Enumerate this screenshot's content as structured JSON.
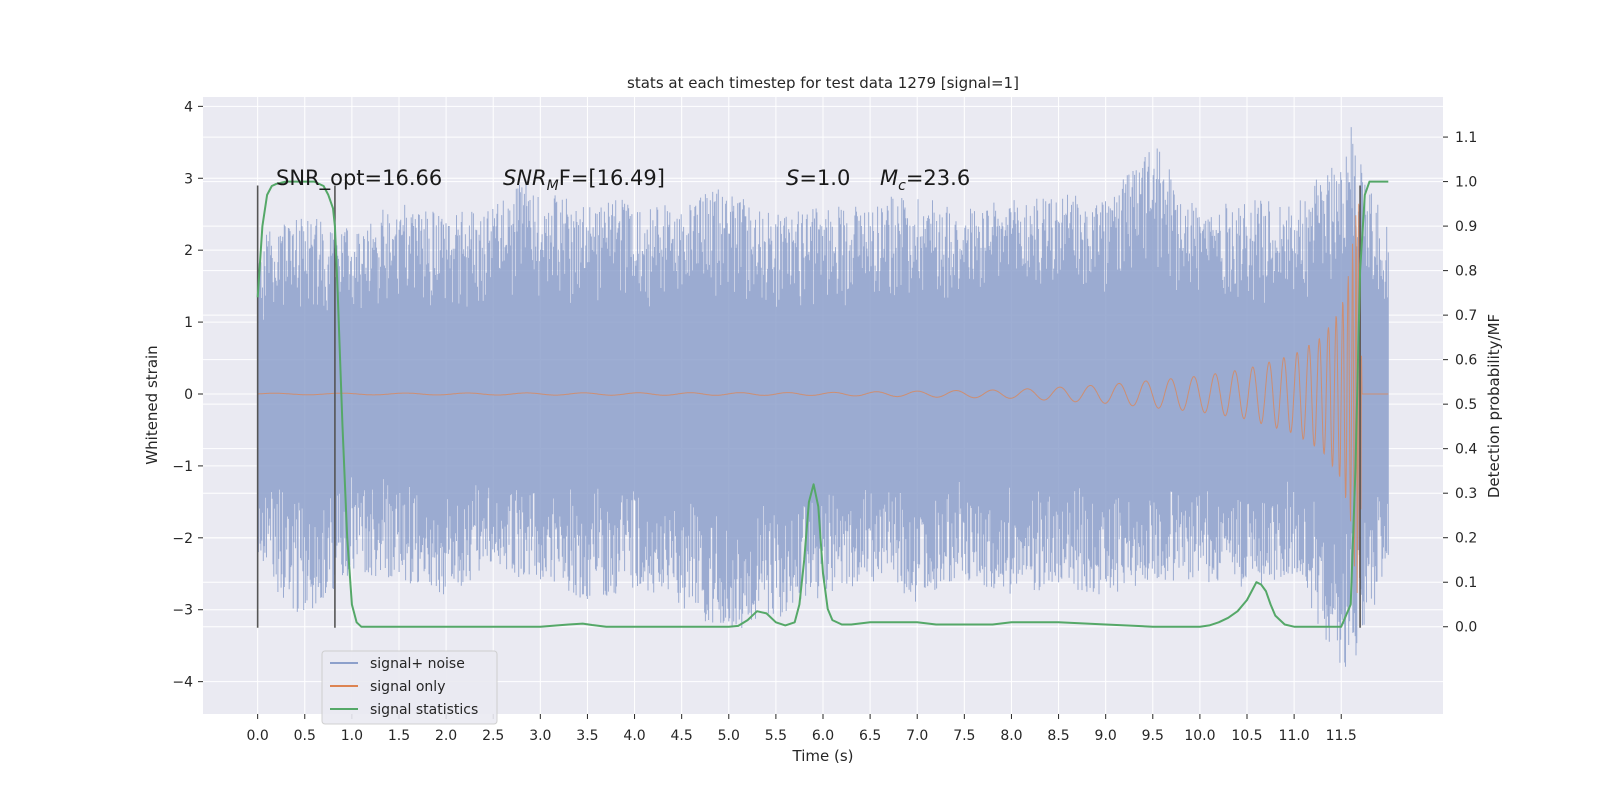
{
  "chart_data": {
    "type": "line",
    "title": "stats at each timestep for test data 1279 [signal=1]",
    "xlabel": "Time (s)",
    "ylabel": "Whitened strain",
    "y2label": "Detection probability/MF",
    "xlim": [
      -0.58,
      12.58
    ],
    "ylim": [
      -4.45,
      4.13
    ],
    "y2lim": [
      -0.196,
      1.19
    ],
    "x_ticks": [
      "0.0",
      "0.5",
      "1.0",
      "1.5",
      "2.0",
      "2.5",
      "3.0",
      "3.5",
      "4.0",
      "4.5",
      "5.0",
      "5.5",
      "6.0",
      "6.5",
      "7.0",
      "7.5",
      "8.0",
      "8.5",
      "9.0",
      "9.5",
      "10.0",
      "10.5",
      "11.0",
      "11.5"
    ],
    "y_ticks": [
      "4",
      "3",
      "2",
      "1",
      "0",
      "−1",
      "−2",
      "−3",
      "−4"
    ],
    "y2_ticks": [
      "1.1",
      "1.0",
      "0.9",
      "0.8",
      "0.7",
      "0.6",
      "0.5",
      "0.4",
      "0.3",
      "0.2",
      "0.1",
      "0.0"
    ],
    "grid": true,
    "legend_position": "lower-left",
    "colors": {
      "background": "#eaeaf2",
      "grid": "#ffffff",
      "signal_noise": "#8da0cb",
      "signal_only": "#dd8452",
      "statistics": "#55a868",
      "vline": "#555555"
    },
    "annotations": {
      "snr_opt": "SNR_opt=16.66",
      "snr_mf_prefix": "SNR",
      "snr_mf_sub": "M",
      "snr_mf_suffix": "F=[16.49]",
      "s_italic": "S",
      "s_value": "=1.0",
      "mc_italic": "M",
      "mc_sub": "c",
      "mc_value": "=23.6"
    },
    "series": [
      {
        "name": "signal+ noise",
        "kind": "whitened noise + signal",
        "x_range": [
          0,
          12.0
        ],
        "envelope_pos": [
          [
            0.0,
            2.2
          ],
          [
            0.5,
            2.5
          ],
          [
            1.0,
            2.3
          ],
          [
            1.5,
            2.7
          ],
          [
            2.0,
            2.5
          ],
          [
            2.5,
            2.6
          ],
          [
            2.8,
            2.95
          ],
          [
            3.0,
            2.8
          ],
          [
            3.5,
            2.7
          ],
          [
            4.0,
            2.7
          ],
          [
            4.5,
            2.6
          ],
          [
            4.9,
            2.9
          ],
          [
            5.5,
            2.5
          ],
          [
            6.0,
            2.6
          ],
          [
            6.5,
            2.7
          ],
          [
            7.0,
            2.8
          ],
          [
            7.5,
            2.6
          ],
          [
            8.0,
            2.7
          ],
          [
            8.5,
            2.8
          ],
          [
            9.0,
            2.7
          ],
          [
            9.5,
            3.5
          ],
          [
            10.0,
            2.6
          ],
          [
            10.5,
            2.7
          ],
          [
            11.0,
            2.7
          ],
          [
            11.5,
            3.3
          ],
          [
            11.6,
            3.75
          ],
          [
            12.0,
            2.3
          ]
        ],
        "envelope_neg": [
          [
            0.0,
            -2.3
          ],
          [
            0.3,
            -3.0
          ],
          [
            0.5,
            -3.1
          ],
          [
            1.0,
            -2.5
          ],
          [
            1.5,
            -2.6
          ],
          [
            2.0,
            -2.8
          ],
          [
            2.5,
            -2.5
          ],
          [
            3.0,
            -2.6
          ],
          [
            3.5,
            -2.9
          ],
          [
            4.0,
            -2.7
          ],
          [
            4.3,
            -2.8
          ],
          [
            4.9,
            -3.3
          ],
          [
            5.5,
            -3.2
          ],
          [
            6.0,
            -2.8
          ],
          [
            6.5,
            -2.6
          ],
          [
            7.0,
            -2.9
          ],
          [
            7.5,
            -2.6
          ],
          [
            8.0,
            -2.8
          ],
          [
            8.5,
            -2.7
          ],
          [
            9.0,
            -2.8
          ],
          [
            9.5,
            -2.6
          ],
          [
            10.0,
            -2.6
          ],
          [
            10.5,
            -2.7
          ],
          [
            11.0,
            -2.5
          ],
          [
            11.55,
            -4.05
          ],
          [
            12.0,
            -2.4
          ]
        ]
      },
      {
        "name": "signal only",
        "kind": "chirp",
        "x_range": [
          0,
          12.0
        ],
        "amplitude": [
          [
            0.0,
            0.01
          ],
          [
            6.0,
            0.02
          ],
          [
            8.0,
            0.06
          ],
          [
            9.0,
            0.13
          ],
          [
            10.0,
            0.25
          ],
          [
            10.5,
            0.35
          ],
          [
            11.0,
            0.55
          ],
          [
            11.3,
            0.8
          ],
          [
            11.5,
            1.2
          ],
          [
            11.6,
            1.8
          ],
          [
            11.7,
            3.3
          ],
          [
            11.72,
            0.0
          ],
          [
            12.0,
            0.0
          ]
        ]
      },
      {
        "name": "signal statistics",
        "axis": "right",
        "x": [
          0.0,
          0.05,
          0.1,
          0.15,
          0.2,
          0.3,
          0.5,
          0.6,
          0.7,
          0.75,
          0.8,
          0.82,
          0.85,
          0.9,
          0.95,
          1.0,
          1.05,
          1.1,
          2.0,
          3.0,
          3.3,
          3.45,
          3.55,
          3.7,
          4.0,
          4.5,
          5.0,
          5.1,
          5.2,
          5.3,
          5.4,
          5.5,
          5.6,
          5.7,
          5.75,
          5.8,
          5.85,
          5.9,
          5.95,
          6.0,
          6.05,
          6.1,
          6.2,
          6.3,
          6.5,
          6.7,
          7.0,
          7.2,
          7.5,
          7.8,
          8.0,
          8.5,
          9.0,
          9.5,
          10.0,
          10.1,
          10.2,
          10.3,
          10.4,
          10.5,
          10.55,
          10.6,
          10.65,
          10.7,
          10.75,
          10.8,
          10.9,
          11.0,
          11.2,
          11.5,
          11.6,
          11.65,
          11.7,
          11.75,
          11.8,
          11.85,
          11.9,
          12.0
        ],
        "y": [
          0.74,
          0.9,
          0.97,
          0.99,
          0.995,
          1.0,
          1.0,
          1.0,
          0.99,
          0.97,
          0.94,
          0.9,
          0.75,
          0.45,
          0.2,
          0.05,
          0.01,
          0.0,
          0.0,
          0.0,
          0.005,
          0.007,
          0.004,
          0.0,
          0.0,
          0.0,
          0.0,
          0.002,
          0.015,
          0.035,
          0.03,
          0.01,
          0.003,
          0.01,
          0.05,
          0.15,
          0.28,
          0.32,
          0.27,
          0.12,
          0.04,
          0.015,
          0.005,
          0.005,
          0.01,
          0.01,
          0.01,
          0.005,
          0.005,
          0.005,
          0.01,
          0.01,
          0.005,
          0.0,
          0.0,
          0.003,
          0.01,
          0.02,
          0.035,
          0.06,
          0.08,
          0.1,
          0.095,
          0.08,
          0.05,
          0.025,
          0.005,
          0.0,
          0.0,
          0.0,
          0.05,
          0.35,
          0.8,
          0.97,
          1.0,
          1.0,
          1.0,
          1.0
        ]
      }
    ],
    "vlines": [
      {
        "x": 0.0,
        "y_from": -3.25,
        "y_to": 2.9
      },
      {
        "x": 0.82,
        "y_from": -3.25,
        "y_to": 2.9
      },
      {
        "x": 11.7,
        "y_from": -3.25,
        "y_to": 2.9
      }
    ]
  }
}
